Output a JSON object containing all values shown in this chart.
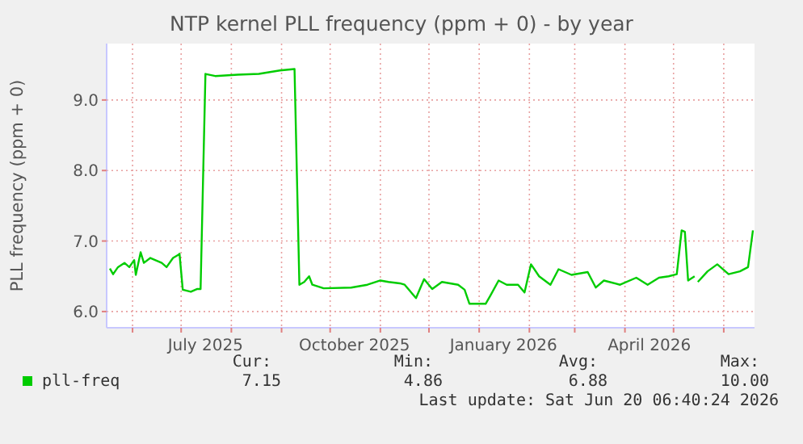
{
  "chart_data": {
    "type": "line",
    "title": "NTP kernel PLL frequency (ppm + 0) - by year",
    "ylabel": "PLL frequency (ppm + 0)",
    "x": [
      "2025-05-18",
      "2025-05-20",
      "2025-05-23",
      "2025-05-27",
      "2025-05-30",
      "2025-06-02",
      "2025-06-03",
      "2025-06-06",
      "2025-06-08",
      "2025-06-12",
      "2025-06-19",
      "2025-06-22",
      "2025-06-26",
      "2025-06-29",
      "2025-06-30",
      "2025-07-02",
      "2025-07-07",
      "2025-07-11",
      "2025-07-13",
      "2025-07-16",
      "2025-07-22",
      "2025-08-05",
      "2025-08-18",
      "2025-08-31",
      "2025-09-09",
      "2025-09-12",
      "2025-09-15",
      "2025-09-18",
      "2025-09-20",
      "2025-09-27",
      "2025-10-14",
      "2025-10-24",
      "2025-11-01",
      "2025-11-06",
      "2025-11-13",
      "2025-11-16",
      "2025-11-23",
      "2025-11-28",
      "2025-12-03",
      "2025-12-09",
      "2025-12-19",
      "2025-12-23",
      "2025-12-26",
      "2026-01-05",
      "2026-01-08",
      "2026-01-13",
      "2026-01-18",
      "2026-01-25",
      "2026-01-29",
      "2026-02-02",
      "2026-02-07",
      "2026-02-14",
      "2026-02-19",
      "2026-02-27",
      "2026-03-09",
      "2026-03-14",
      "2026-03-19",
      "2026-03-29",
      "2026-04-08",
      "2026-04-15",
      "2026-04-22",
      "2026-04-28",
      "2026-05-03",
      "2026-05-06",
      "2026-05-08",
      "2026-05-10",
      "2026-05-14",
      "2026-05-15",
      "2026-05-16",
      "2026-05-22",
      "2026-05-28",
      "2026-06-04",
      "2026-06-11",
      "2026-06-16",
      "2026-06-19"
    ],
    "series": [
      {
        "name": "pll-freq",
        "color": "#00cc00",
        "values": [
          6.61,
          6.53,
          6.63,
          6.69,
          6.63,
          6.73,
          6.52,
          6.84,
          6.69,
          6.76,
          6.69,
          6.63,
          6.76,
          6.8,
          6.82,
          6.31,
          6.28,
          6.32,
          6.32,
          9.37,
          9.34,
          9.36,
          9.37,
          9.42,
          9.44,
          6.38,
          6.42,
          6.5,
          6.38,
          6.33,
          6.34,
          6.38,
          6.44,
          6.42,
          6.4,
          6.38,
          6.19,
          6.46,
          6.32,
          6.42,
          6.38,
          6.31,
          6.11,
          6.11,
          6.23,
          6.44,
          6.38,
          6.38,
          6.27,
          6.67,
          6.5,
          6.38,
          6.6,
          6.52,
          6.56,
          6.34,
          6.44,
          6.38,
          6.48,
          6.38,
          6.48,
          6.5,
          6.53,
          7.15,
          7.13,
          6.44,
          6.5,
          null,
          6.42,
          6.57,
          6.67,
          6.53,
          6.57,
          6.63,
          7.15
        ]
      }
    ],
    "xlim": [
      "2025-05-16",
      "2026-06-20"
    ],
    "xticks": [
      {
        "value": "2025-07-16",
        "label": "July 2025"
      },
      {
        "value": "2025-10-16",
        "label": "October 2025"
      },
      {
        "value": "2026-01-16",
        "label": "January 2026"
      },
      {
        "value": "2026-04-16",
        "label": "April 2026"
      }
    ],
    "ylim": [
      5.77,
      9.8
    ],
    "yticks": [
      {
        "value": 6,
        "label": "6.0"
      },
      {
        "value": 7,
        "label": "7.0"
      },
      {
        "value": 8,
        "label": "8.0"
      },
      {
        "value": 9,
        "label": "9.0"
      }
    ],
    "grid": true,
    "legend": "bottom left",
    "annotations": [
      "Cur:",
      "Min:",
      "Avg:",
      "Max:",
      "7.15",
      "4.86",
      "6.88",
      "10.00",
      "Last update: Sat Jun 20 06:40:24 2026"
    ]
  }
}
